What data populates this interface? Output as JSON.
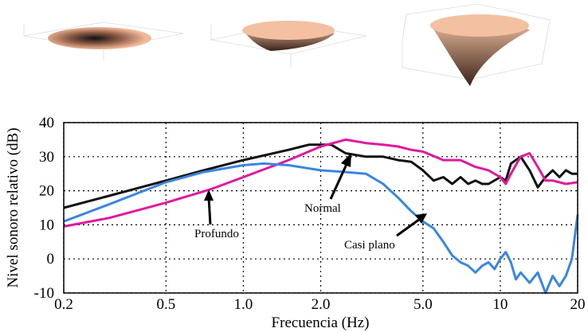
{
  "chart_data": {
    "type": "line",
    "xlabel": "Frecuencia (Hz)",
    "ylabel": "Nivel sonoro relativo (dB)",
    "xscale": "log",
    "grid": true,
    "xlim": [
      0.2,
      20
    ],
    "ylim": [
      -10,
      40
    ],
    "xticks": [
      0.2,
      0.5,
      {
        "value": 1,
        "label": "1.0"
      },
      {
        "value": 2,
        "label": "2.0"
      },
      {
        "value": 5,
        "label": "5.0"
      },
      10,
      20
    ],
    "yticks": [
      -10,
      0,
      10,
      20,
      30,
      40
    ],
    "series": [
      {
        "name": "Normal",
        "color": "#111111",
        "x": [
          0.2,
          0.3,
          0.5,
          0.7,
          1.0,
          1.5,
          1.8,
          2.2,
          2.5,
          3,
          3.5,
          4,
          4.5,
          5,
          5.5,
          6,
          6.5,
          7,
          7.5,
          8,
          8.5,
          9,
          10,
          10.5,
          11,
          12,
          13,
          14,
          15,
          16,
          17,
          18,
          19,
          20
        ],
        "values": [
          15,
          18.5,
          23,
          26,
          29,
          32,
          33.5,
          33.5,
          31,
          30,
          30,
          29,
          28.5,
          26,
          23,
          24,
          22,
          24,
          22,
          23,
          22,
          22,
          24,
          23,
          28,
          30,
          26,
          21,
          24,
          26,
          24,
          26,
          25,
          25
        ]
      },
      {
        "name": "Profundo",
        "color": "#e0199e",
        "x": [
          0.2,
          0.3,
          0.5,
          0.75,
          1.0,
          1.5,
          2,
          2.5,
          3,
          3.5,
          4,
          4.5,
          5,
          6,
          7,
          8,
          9,
          10,
          10.5,
          11,
          12,
          13,
          14,
          15,
          16,
          18,
          20
        ],
        "values": [
          9.5,
          12,
          16.5,
          20.5,
          24,
          29,
          33,
          35,
          34,
          33.5,
          33,
          32,
          31.5,
          29,
          29,
          27,
          26,
          24,
          22,
          25,
          30,
          31,
          27,
          23,
          23,
          22,
          22.5
        ]
      },
      {
        "name": "Casi plano",
        "color": "#3a86e0",
        "x": [
          0.2,
          0.3,
          0.5,
          0.7,
          1.0,
          1.2,
          1.5,
          2.0,
          2.5,
          3,
          3.5,
          4,
          4.5,
          5,
          5.5,
          6,
          6.5,
          7,
          7.5,
          8,
          8.5,
          9,
          9.5,
          10,
          10.5,
          11,
          11.5,
          12,
          13,
          14,
          15,
          16,
          17,
          18,
          19,
          20
        ],
        "values": [
          11,
          16,
          22.5,
          25.5,
          27.5,
          28,
          27.5,
          26,
          25.5,
          25,
          22,
          18,
          14,
          11,
          9,
          5,
          1,
          -1,
          -2,
          -4,
          -2,
          -1,
          -3,
          0,
          2,
          -1,
          -6,
          -4,
          -7,
          -4,
          -10,
          -5,
          -8,
          -5,
          0,
          13
        ]
      }
    ],
    "annotations": [
      "Profundo",
      "Normal",
      "Casi plano"
    ]
  }
}
